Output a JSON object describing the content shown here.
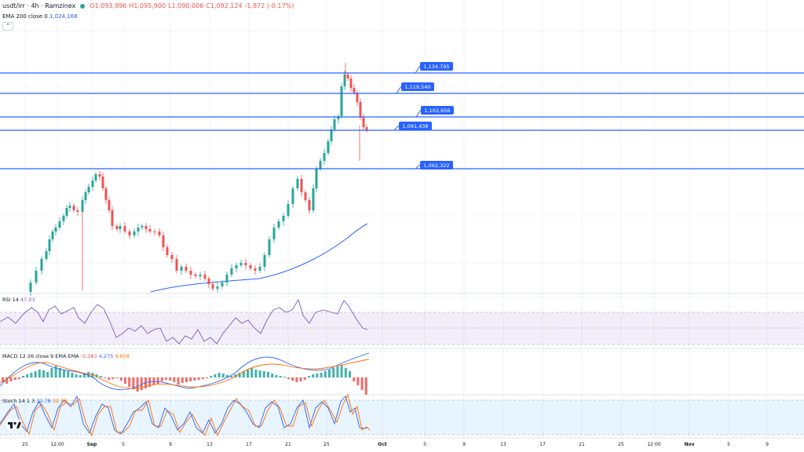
{
  "header": {
    "symbol": "usdt/irr · 4h · Ramzinex",
    "open": "O1,093,996",
    "high": "H1,095,900",
    "low": "L1,090,006",
    "close": "C1,092,124",
    "change": "-1,872 (-0.17%)",
    "collapse_icon": "chevron-up-icon"
  },
  "ema": {
    "label": "EMA 200 close 0",
    "value": "1,024,168"
  },
  "rsi": {
    "label": "RSI 14",
    "value": "47.03"
  },
  "macd": {
    "label": "MACD 12 26 close 9 EMA EMA",
    "hist": "-5,383",
    "macd": "4,275",
    "signal": "9,658"
  },
  "stoch": {
    "label": "Stoch 14 1 3",
    "k": "32.78",
    "d": "32.88"
  },
  "price_labels": [
    "1,134,795",
    "1,119,540",
    "1,102,656",
    "1,091,438",
    "1,062,322"
  ],
  "x_axis": [
    "25",
    "12:00",
    "Sep",
    "5",
    "9",
    "13",
    "17",
    "21",
    "25",
    "Oct",
    "5",
    "9",
    "13",
    "17",
    "21",
    "25",
    "12:00",
    "Nov",
    "5",
    "9"
  ],
  "colors": {
    "up": "#26a69a",
    "down": "#ef5350",
    "line": "#2962ff",
    "rsi": "#7e57c2",
    "stoch_k": "#2962ff",
    "stoch_d": "#ff6d00"
  }
}
